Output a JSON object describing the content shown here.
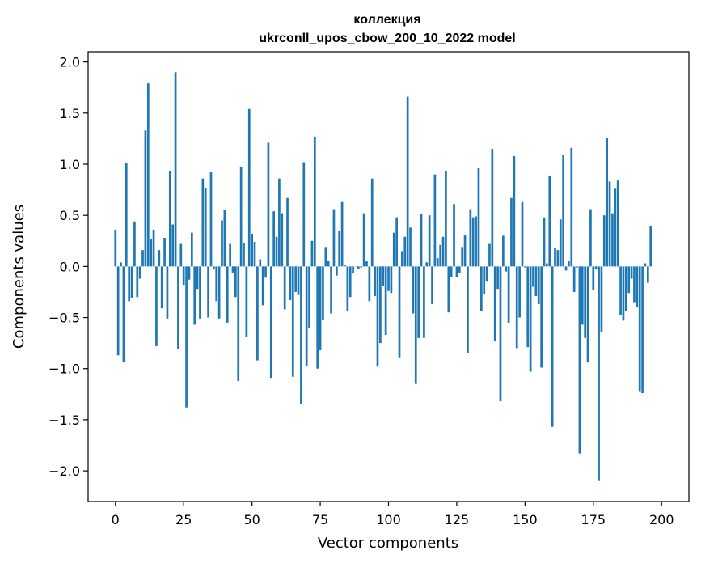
{
  "chart_data": {
    "type": "bar",
    "title_line1": "коллекция",
    "title_line2": "ukrconll_upos_cbow_200_10_2022 model",
    "xlabel": "Vector components",
    "ylabel": "Components values",
    "xlim": [
      -10,
      210
    ],
    "ylim": [
      -2.3,
      2.1
    ],
    "x_ticks": [
      0,
      25,
      50,
      75,
      100,
      125,
      150,
      175,
      200
    ],
    "y_ticks": [
      -2.0,
      -1.5,
      -1.0,
      -0.5,
      0.0,
      0.5,
      1.0,
      1.5,
      2.0
    ],
    "y_tick_labels": [
      "−2.0",
      "−1.5",
      "−1.0",
      "−0.5",
      "0.0",
      "0.5",
      "1.0",
      "1.5",
      "2.0"
    ],
    "grid": false,
    "bar_color": "#1f77b4",
    "values": [
      0.36,
      -0.87,
      0.04,
      -0.94,
      1.01,
      -0.34,
      -0.31,
      0.44,
      -0.3,
      -0.12,
      0.16,
      1.33,
      1.79,
      0.27,
      0.36,
      -0.78,
      0.16,
      -0.41,
      0.28,
      -0.51,
      0.93,
      0.41,
      1.9,
      -0.81,
      0.22,
      -0.18,
      -1.38,
      -0.13,
      0.33,
      -0.57,
      -0.22,
      -0.51,
      0.86,
      0.77,
      -0.5,
      0.92,
      -0.03,
      -0.34,
      -0.51,
      0.45,
      0.55,
      -0.55,
      0.22,
      -0.06,
      -0.3,
      -1.12,
      0.97,
      0.23,
      -0.69,
      1.54,
      0.32,
      0.24,
      -0.92,
      0.07,
      -0.38,
      -0.11,
      1.21,
      -1.09,
      0.54,
      0.29,
      0.86,
      0.52,
      -0.42,
      0.67,
      -0.33,
      -1.08,
      -0.25,
      -0.28,
      -1.35,
      1.02,
      -0.97,
      -0.6,
      0.25,
      1.27,
      -1.0,
      -0.82,
      -0.52,
      0.19,
      0.05,
      -0.46,
      0.56,
      -0.09,
      0.35,
      0.63,
      0.01,
      -0.44,
      -0.3,
      -0.07,
      0.0,
      -0.02,
      -0.01,
      0.52,
      0.05,
      -0.34,
      0.86,
      -0.29,
      -0.98,
      -0.75,
      -0.19,
      -0.67,
      -0.24,
      -0.26,
      0.33,
      0.48,
      -0.89,
      0.15,
      0.29,
      1.66,
      0.38,
      -0.46,
      -1.15,
      -0.7,
      0.51,
      -0.7,
      0.04,
      0.5,
      -0.37,
      0.9,
      0.08,
      0.21,
      0.29,
      0.93,
      -0.45,
      -0.1,
      0.61,
      -0.1,
      -0.06,
      0.19,
      0.31,
      -0.85,
      0.56,
      0.48,
      0.49,
      0.96,
      -0.44,
      -0.27,
      -0.15,
      0.22,
      1.15,
      -0.73,
      -0.22,
      -1.32,
      0.3,
      -0.05,
      -0.55,
      0.67,
      1.08,
      -0.8,
      -0.5,
      0.63,
      -0.01,
      -0.79,
      -1.03,
      -0.2,
      -0.29,
      -0.37,
      -0.99,
      0.48,
      0.03,
      0.89,
      -1.57,
      0.18,
      0.16,
      0.46,
      1.09,
      -0.04,
      0.05,
      1.16,
      -0.25,
      -0.01,
      -1.83,
      -0.57,
      -0.7,
      -0.94,
      0.56,
      -0.23,
      -0.03,
      -2.1,
      -0.64,
      0.5,
      1.26,
      0.83,
      0.52,
      0.76,
      0.84,
      -0.48,
      -0.53,
      -0.44,
      -0.26,
      -0.12,
      -0.35,
      -0.4,
      -1.22,
      -1.24,
      0.03,
      -0.16,
      0.39
    ]
  }
}
